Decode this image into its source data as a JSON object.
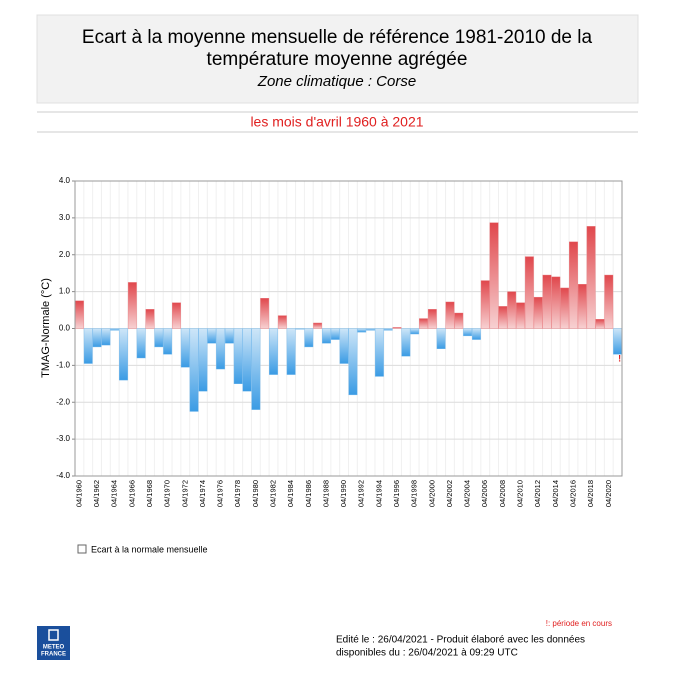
{
  "chart_data": {
    "type": "bar",
    "title": [
      "Ecart à la moyenne mensuelle de référence 1981-2010 de la",
      "température moyenne  agrégée"
    ],
    "subtitle": "Zone climatique : Corse",
    "period": "les mois d'avril 1960 à 2021",
    "y_label": "TMAG-Normale (°C)",
    "categories": [
      "04/1960",
      null,
      "04/1962",
      null,
      "04/1964",
      null,
      "04/1966",
      null,
      "04/1968",
      null,
      "04/1970",
      null,
      "04/1972",
      null,
      "04/1974",
      null,
      "04/1976",
      null,
      "04/1978",
      null,
      "04/1980",
      null,
      "04/1982",
      null,
      "04/1984",
      null,
      "04/1986",
      null,
      "04/1988",
      null,
      "04/1990",
      null,
      "04/1992",
      null,
      "04/1994",
      null,
      "04/1996",
      null,
      "04/1998",
      null,
      "04/2000",
      null,
      "04/2002",
      null,
      "04/2004",
      null,
      "04/2006",
      null,
      "04/2008",
      null,
      "04/2010",
      null,
      "04/2012",
      null,
      "04/2014",
      null,
      "04/2016",
      null,
      "04/2018",
      null,
      "04/2020",
      null
    ],
    "series": [
      {
        "name": "Ecart à la normale mensuelle",
        "values": [
          0.75,
          -0.95,
          -0.5,
          -0.45,
          -0.05,
          -1.4,
          1.25,
          -0.8,
          0.52,
          -0.5,
          -0.7,
          0.7,
          -1.05,
          -2.25,
          -1.7,
          -0.4,
          -1.1,
          -0.4,
          -1.5,
          -1.7,
          -2.2,
          0.82,
          -1.25,
          0.35,
          -1.25,
          -0.02,
          -0.5,
          0.15,
          -0.4,
          -0.3,
          -0.95,
          -1.8,
          -0.1,
          -0.05,
          -1.3,
          -0.05,
          0.03,
          -0.75,
          -0.15,
          0.27,
          0.52,
          -0.55,
          0.72,
          0.42,
          -0.2,
          -0.3,
          1.3,
          2.87,
          0.6,
          1.0,
          0.7,
          1.95,
          0.85,
          1.45,
          1.4,
          1.1,
          2.35,
          1.2,
          2.77,
          0.25,
          1.45,
          -0.7
        ]
      }
    ],
    "positive_color": "#e0474c",
    "negative_color": "#3a9be4",
    "ylim": [
      -4,
      4
    ],
    "yticks": [
      {
        "value": -4,
        "label": "-4.0"
      },
      {
        "value": -3,
        "label": "-3.0"
      },
      {
        "value": -2,
        "label": "-2.0"
      },
      {
        "value": -1,
        "label": "-1.0"
      },
      {
        "value": 0,
        "label": "0.0"
      },
      {
        "value": 1,
        "label": "1.0"
      },
      {
        "value": 2,
        "label": "2.0"
      },
      {
        "value": 3,
        "label": "3.0"
      },
      {
        "value": 4,
        "label": "4.0"
      }
    ],
    "grid": true,
    "current_marker": "!",
    "footnote": "!: période en cours",
    "edited": [
      "Edité le : 26/04/2021 - Produit élaboré avec les données",
      "disponibles du : 26/04/2021 à 09:29 UTC"
    ],
    "logo": [
      "METEO",
      "FRANCE"
    ]
  }
}
